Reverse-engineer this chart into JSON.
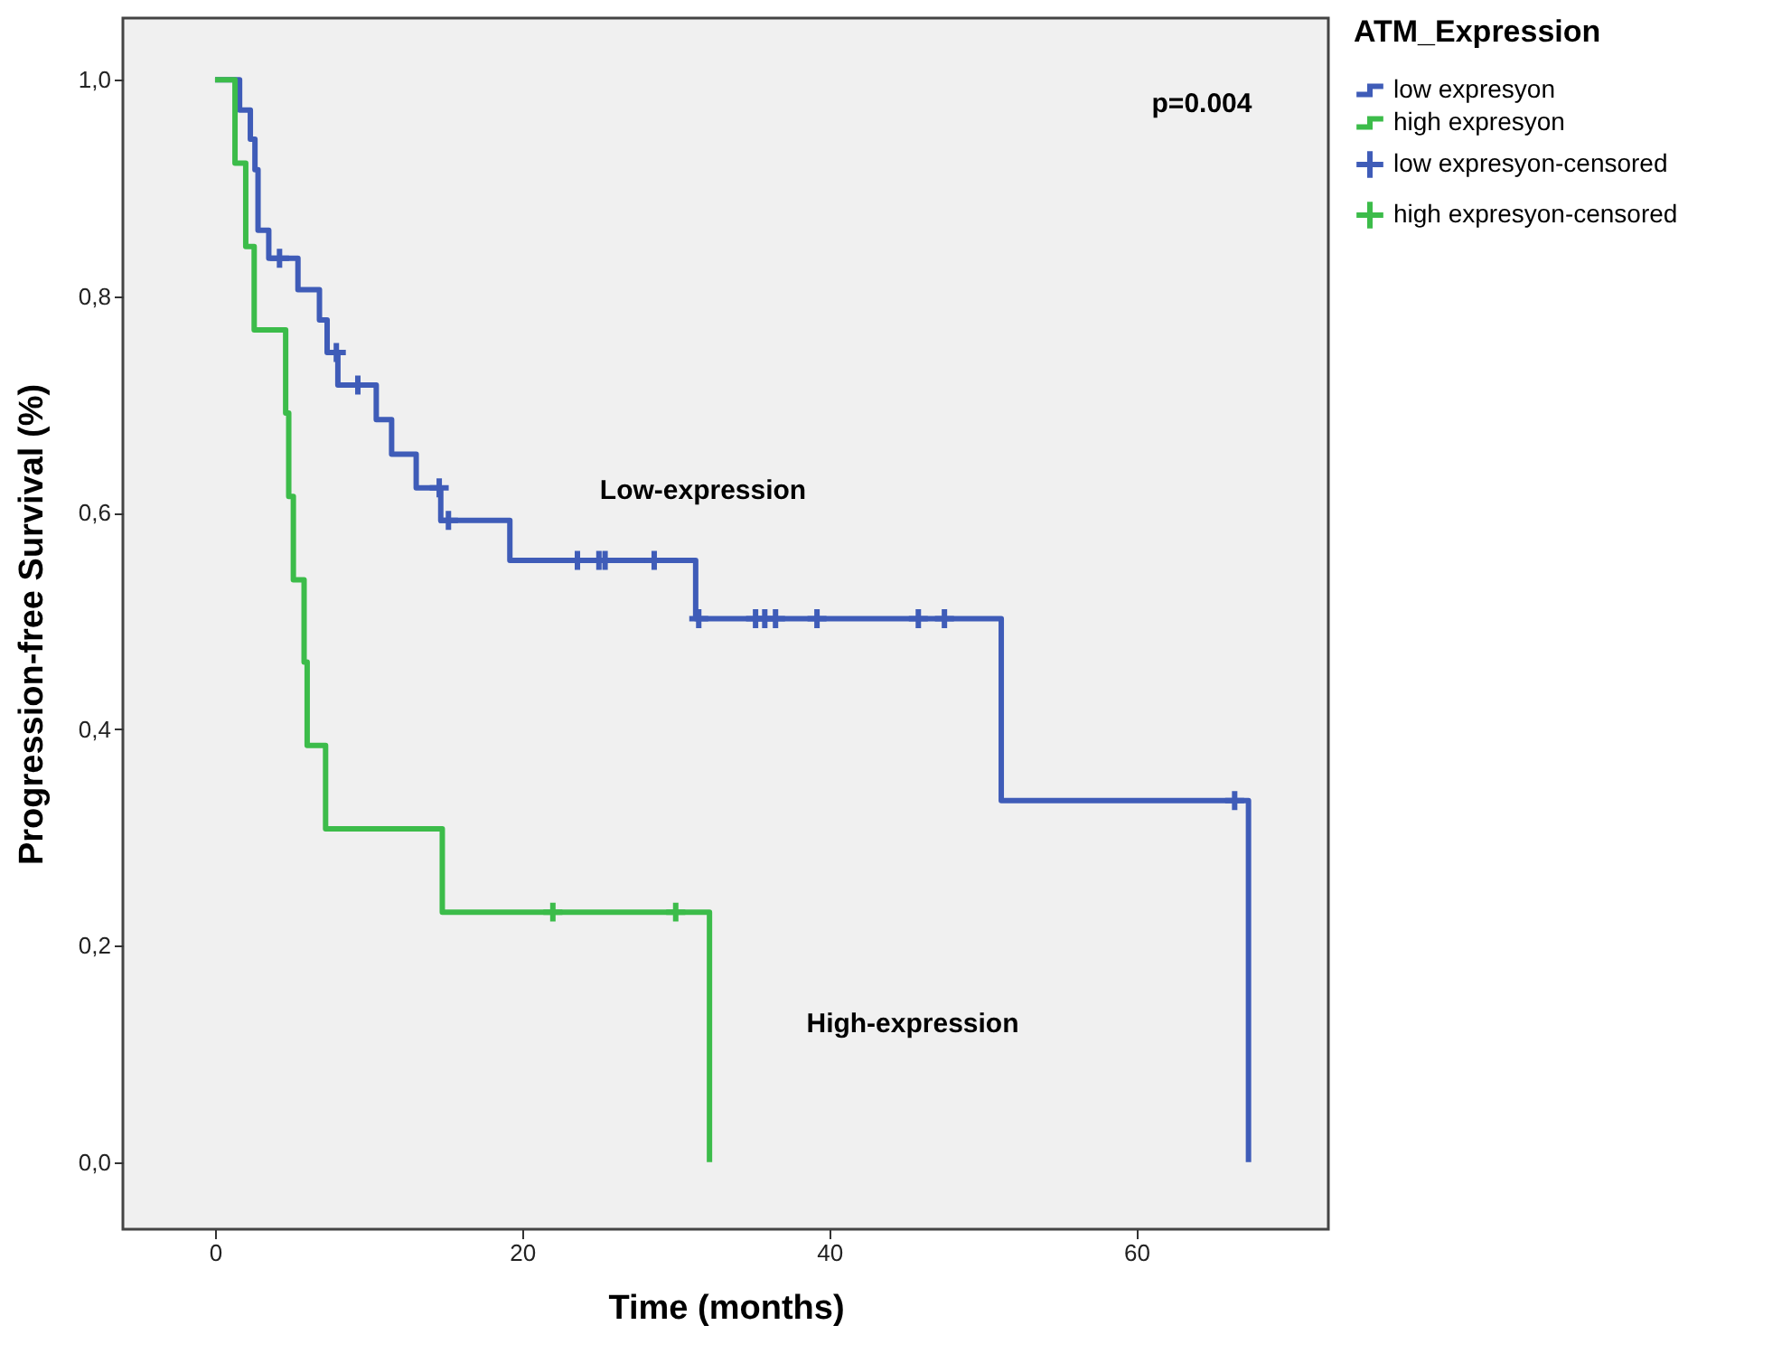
{
  "chart_data": {
    "type": "step",
    "xlabel": "Time (months)",
    "ylabel": "Progression-free Survival (%)",
    "legend_title": "ATM_Expression",
    "legend": "right",
    "grid": false,
    "xlim": [
      -6,
      72.5
    ],
    "xticks": [
      0,
      20,
      40,
      60
    ],
    "ylim": [
      -0.062,
      1.057
    ],
    "yticks": [
      {
        "value": 0,
        "label": "0,0"
      },
      {
        "value": 0.2,
        "label": "0,2"
      },
      {
        "value": 0.4,
        "label": "0,4"
      },
      {
        "value": 0.6,
        "label": "0,6"
      },
      {
        "value": 0.8,
        "label": "0,8"
      },
      {
        "value": 1,
        "label": "1,0"
      }
    ],
    "annotations": [
      "p=0.004",
      "Low-expression",
      "High-expression"
    ],
    "series": [
      {
        "name": "low expresyon",
        "color": "#3f5cb8",
        "x": [
          0,
          1.6,
          2.3,
          2.6,
          2.8,
          3.5,
          5.4,
          6.8,
          7.3,
          8.0,
          10.5,
          11.5,
          13.1,
          14.7,
          19.2,
          31.3,
          51.2,
          67.3
        ],
        "values": [
          1,
          0.972,
          0.945,
          0.917,
          0.861,
          0.835,
          0.806,
          0.778,
          0.748,
          0.718,
          0.686,
          0.654,
          0.623,
          0.593,
          0.556,
          0.502,
          0.334,
          0
        ]
      },
      {
        "name": "high expresyon",
        "color": "#3cbc4a",
        "x": [
          0,
          1.3,
          2.0,
          2.55,
          4.6,
          4.8,
          5.1,
          5.8,
          6.0,
          7.2,
          14.8,
          32.2
        ],
        "values": [
          1,
          0.923,
          0.846,
          0.769,
          0.692,
          0.615,
          0.538,
          0.462,
          0.385,
          0.308,
          0.231,
          0
        ]
      },
      {
        "name": "low expresyon-censored",
        "type": "scatter",
        "marker": "cross",
        "color": "#3f5cb8",
        "x": [
          4.2,
          7.9,
          9.3,
          14.6,
          15.2,
          23.6,
          25.0,
          25.4,
          28.6,
          31.5,
          35.2,
          35.8,
          36.5,
          39.2,
          45.8,
          47.5,
          66.4
        ],
        "values": [
          0.835,
          0.748,
          0.718,
          0.623,
          0.593,
          0.556,
          0.556,
          0.556,
          0.556,
          0.502,
          0.502,
          0.502,
          0.502,
          0.502,
          0.502,
          0.502,
          0.334
        ]
      },
      {
        "name": "high expresyon-censored",
        "type": "scatter",
        "marker": "cross",
        "color": "#3cbc4a",
        "x": [
          22.0,
          30.0
        ],
        "values": [
          0.231,
          0.231
        ]
      }
    ]
  }
}
